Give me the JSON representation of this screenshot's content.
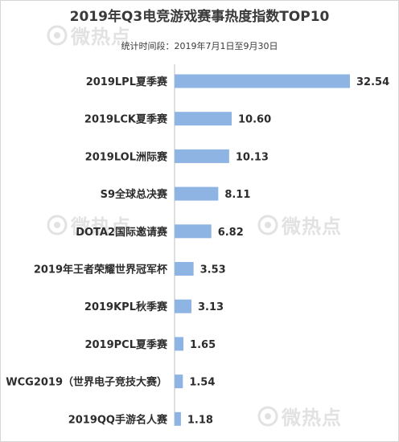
{
  "watermark_text": "微热点",
  "chart_data": {
    "type": "bar",
    "orientation": "horizontal",
    "title": "2019年Q3电竞游戏赛事热度指数TOP10",
    "subtitle": "统计时间段：2019年7月1日至9月30日",
    "categories": [
      "2019LPL夏季赛",
      "2019LCK夏季赛",
      "2019LOL洲际赛",
      "S9全球总决赛",
      "DOTA2国际邀请赛",
      "2019年王者荣耀世界冠军杯",
      "2019KPL秋季赛",
      "2019PCL夏季赛",
      "WCG2019（世界电子竞技大赛）",
      "2019QQ手游名人赛"
    ],
    "values": [
      32.54,
      10.6,
      10.13,
      8.11,
      6.82,
      3.53,
      3.13,
      1.65,
      1.54,
      1.18
    ],
    "value_labels": [
      "32.54",
      "10.60",
      "10.13",
      "8.11",
      "6.82",
      "3.53",
      "3.13",
      "1.65",
      "1.54",
      "1.18"
    ],
    "xlim": [
      0,
      32.54
    ],
    "bar_color": "#8eb4e3",
    "grid": false,
    "legend": "none"
  }
}
